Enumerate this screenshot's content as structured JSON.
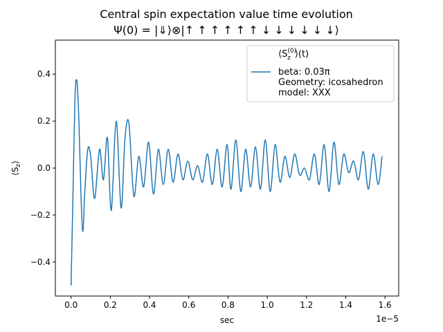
{
  "chart_data": {
    "type": "line",
    "title_line1": "Central spin expectation value time evolution",
    "title_line2": "Ψ(0) = |⇓⟩⊗|↑ ↑ ↑ ↑ ↑ ↑ ↓ ↓ ↓ ↓ ↓ ↓⟩",
    "xlabel": "sec",
    "ylabel": "⟨S_z⟩",
    "x_offset_label": "1e−5",
    "xlim": [
      -8e-07,
      1.67e-05
    ],
    "ylim": [
      -0.545,
      0.545
    ],
    "xticks": [
      0.0,
      2e-06,
      4e-06,
      6e-06,
      8e-06,
      1e-05,
      1.2e-05,
      1.4e-05,
      1.6e-05
    ],
    "xtick_labels": [
      "0.0",
      "0.2",
      "0.4",
      "0.6",
      "0.8",
      "1.0",
      "1.2",
      "1.4",
      "1.6"
    ],
    "yticks": [
      -0.4,
      -0.2,
      0.0,
      0.2,
      0.4
    ],
    "ytick_labels": [
      "−0.4",
      "−0.2",
      "0.0",
      "0.2",
      "0.4"
    ],
    "grid": false,
    "legend_placement": "upper right",
    "legend_title": "⟨S_z^(0)⟩(t)",
    "series": [
      {
        "name": "beta: 0.03π\nGeometry: icosahedron\nmodel: XXX",
        "color": "#1f77b4",
        "x": [
          0.0,
          1e-07,
          2e-07,
          3e-07,
          4e-07,
          5e-07,
          6e-07,
          7e-07,
          8.5e-07,
          1e-06,
          1.2e-06,
          1.45e-06,
          1.65e-06,
          1.85e-06,
          2.05e-06,
          2.3e-06,
          2.55e-06,
          2.75e-06,
          2.95e-06,
          3.2e-06,
          3.45e-06,
          3.7e-06,
          3.95e-06,
          4.2e-06,
          4.45e-06,
          4.7e-06,
          4.95e-06,
          5.2e-06,
          5.45e-06,
          5.7e-06,
          5.95e-06,
          6.2e-06,
          6.45e-06,
          6.7e-06,
          6.95e-06,
          7.2e-06,
          7.45e-06,
          7.7e-06,
          7.95e-06,
          8.15e-06,
          8.4e-06,
          8.65e-06,
          8.9e-06,
          9.15e-06,
          9.4e-06,
          9.65e-06,
          9.9e-06,
          1.015e-05,
          1.04e-05,
          1.065e-05,
          1.09e-05,
          1.115e-05,
          1.14e-05,
          1.165e-05,
          1.19e-05,
          1.215e-05,
          1.24e-05,
          1.265e-05,
          1.29e-05,
          1.315e-05,
          1.34e-05,
          1.365e-05,
          1.39e-05,
          1.415e-05,
          1.44e-05,
          1.465e-05,
          1.49e-05,
          1.515e-05,
          1.54e-05,
          1.565e-05,
          1.585e-05
        ],
        "y": [
          -0.5,
          -0.1,
          0.3,
          0.37,
          0.2,
          -0.1,
          -0.27,
          -0.1,
          0.08,
          0.05,
          -0.13,
          0.08,
          -0.05,
          0.13,
          -0.18,
          0.2,
          -0.17,
          0.13,
          0.19,
          -0.12,
          0.05,
          -0.08,
          0.11,
          -0.11,
          0.08,
          -0.07,
          0.08,
          -0.06,
          0.06,
          -0.05,
          0.03,
          -0.05,
          0.01,
          -0.06,
          0.06,
          -0.07,
          0.08,
          -0.08,
          0.1,
          -0.09,
          0.12,
          -0.1,
          0.08,
          -0.08,
          0.09,
          -0.09,
          0.12,
          -0.1,
          0.1,
          -0.06,
          0.05,
          -0.04,
          0.06,
          -0.03,
          0.0,
          -0.05,
          0.06,
          -0.07,
          0.1,
          -0.1,
          0.11,
          -0.07,
          0.06,
          -0.02,
          0.03,
          -0.05,
          0.07,
          -0.09,
          0.06,
          -0.07,
          0.05
        ]
      }
    ]
  }
}
